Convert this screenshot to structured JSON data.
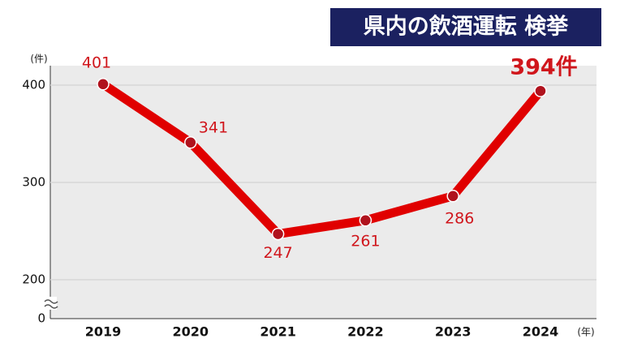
{
  "chart_data": {
    "type": "line",
    "title": "県内の飲酒運転 検挙",
    "y_unit": "(件)",
    "x_unit": "(年)",
    "categories": [
      "2019",
      "2020",
      "2021",
      "2022",
      "2023",
      "2024"
    ],
    "values": [
      401,
      341,
      247,
      261,
      286,
      394
    ],
    "value_labels": [
      "401",
      "341",
      "247",
      "261",
      "286",
      "394件"
    ],
    "color": "#e00000",
    "ylim": [
      0,
      420
    ],
    "yticks": [
      0,
      200,
      300,
      400
    ],
    "y_break": true,
    "grid": true
  }
}
